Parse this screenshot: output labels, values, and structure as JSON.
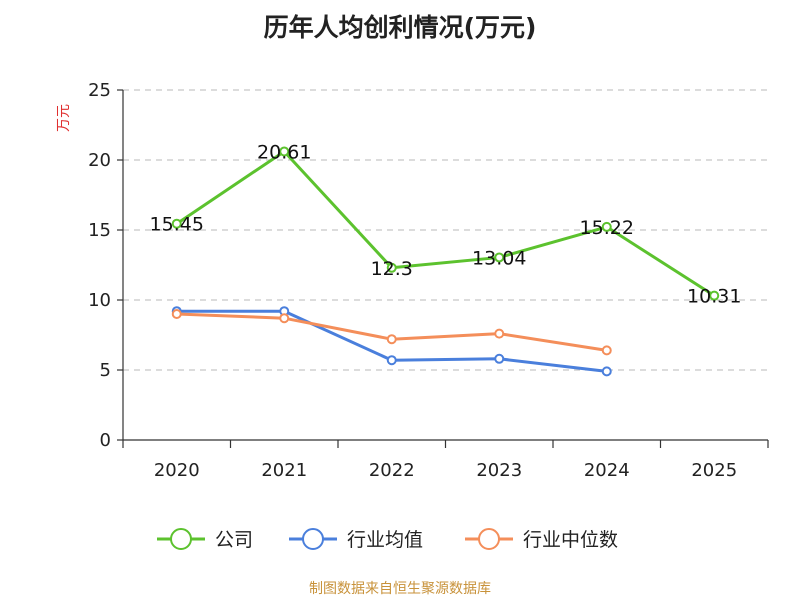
{
  "title": "历年人均创利情况(万元)",
  "source": "制图数据来自恒生聚源数据库",
  "colors": {
    "company": "#5cc22e",
    "industry_avg": "#4a7fdc",
    "industry_median": "#f48e5a"
  },
  "chart_data": {
    "type": "line",
    "title": "历年人均创利情况(万元)",
    "ylabel": "万元",
    "xlabel": "",
    "categories": [
      "2020",
      "2021",
      "2022",
      "2023",
      "2024",
      "2025"
    ],
    "ylim": [
      0,
      25
    ],
    "yticks": [
      0,
      5,
      10,
      15,
      20,
      25
    ],
    "grid": true,
    "legend_position": "bottom",
    "series": [
      {
        "name": "公司",
        "key": "company",
        "values": [
          15.45,
          20.61,
          12.3,
          13.04,
          15.22,
          10.31
        ],
        "labels": [
          "15.45",
          "20.61",
          "12.3",
          "13.04",
          "15.22",
          "10.31"
        ],
        "show_labels": true
      },
      {
        "name": "行业均值",
        "key": "industry_avg",
        "values": [
          9.2,
          9.2,
          5.7,
          5.8,
          4.9,
          null
        ],
        "show_labels": false
      },
      {
        "name": "行业中位数",
        "key": "industry_median",
        "values": [
          9.0,
          8.7,
          7.2,
          7.6,
          6.4,
          null
        ],
        "show_labels": false
      }
    ]
  }
}
